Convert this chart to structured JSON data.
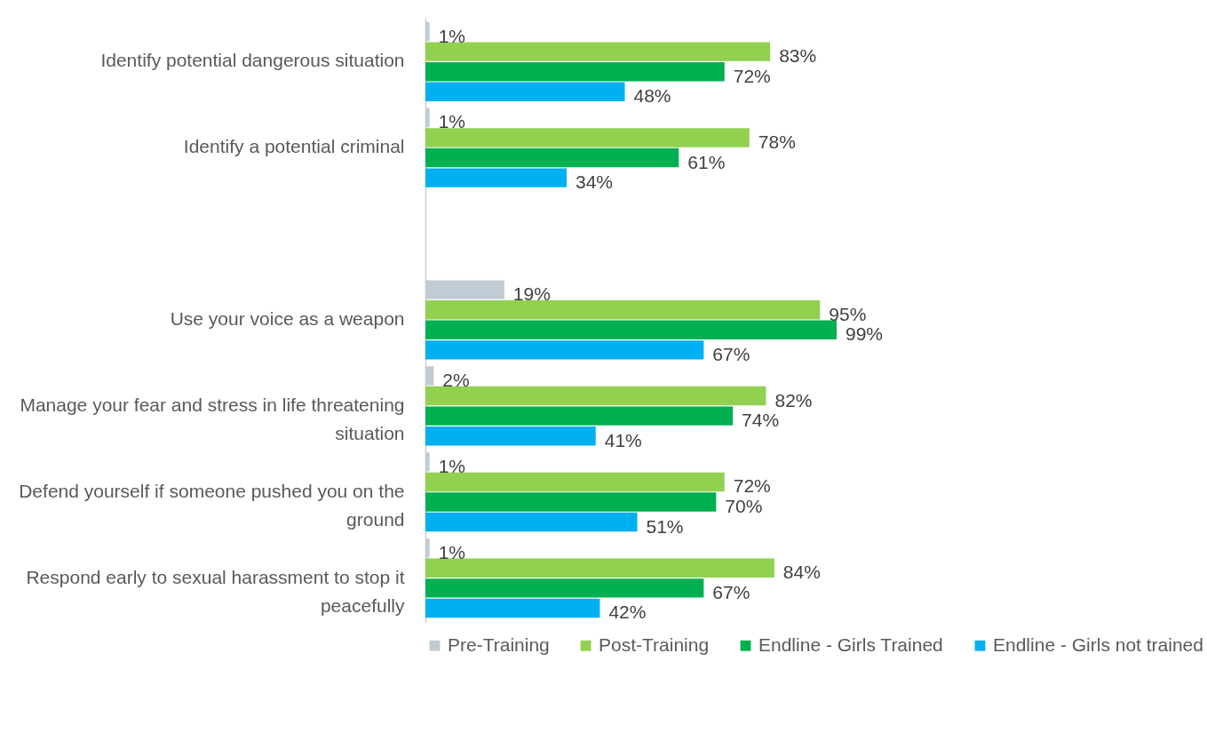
{
  "chart_data": {
    "type": "bar",
    "orientation": "horizontal",
    "legend": "bottom",
    "categories": [
      "Identify potential dangerous situation",
      "Identify a potential criminal",
      null,
      "Use your voice as a weapon",
      "Manage your fear and stress in life threatening situation",
      "Defend yourself if someone pushed you on the ground",
      "Respond early to sexual harassment to stop it peacefully"
    ],
    "series": [
      {
        "name": "Pre-Training",
        "color": "#c0cbd3",
        "values": [
          1,
          1,
          null,
          19,
          2,
          1,
          1
        ],
        "value_labels": [
          "1%",
          "1%",
          null,
          "19%",
          "2%",
          "1%",
          "1%"
        ]
      },
      {
        "name": "Post-Training",
        "color": "#92d050",
        "values": [
          83,
          78,
          null,
          95,
          82,
          72,
          84
        ],
        "value_labels": [
          "83%",
          "78%",
          null,
          "95%",
          "82%",
          "72%",
          "84%"
        ]
      },
      {
        "name": "Endline - Girls Trained",
        "color": "#00b050",
        "values": [
          72,
          61,
          null,
          99,
          74,
          70,
          67
        ],
        "value_labels": [
          "72%",
          "61%",
          null,
          "99%",
          "74%",
          "70%",
          "67%"
        ]
      },
      {
        "name": "Endline - Girls not trained",
        "color": "#00b0f0",
        "values": [
          48,
          34,
          null,
          67,
          41,
          51,
          42
        ],
        "value_labels": [
          "48%",
          "34%",
          null,
          "67%",
          "41%",
          "51%",
          "42%"
        ]
      }
    ]
  }
}
